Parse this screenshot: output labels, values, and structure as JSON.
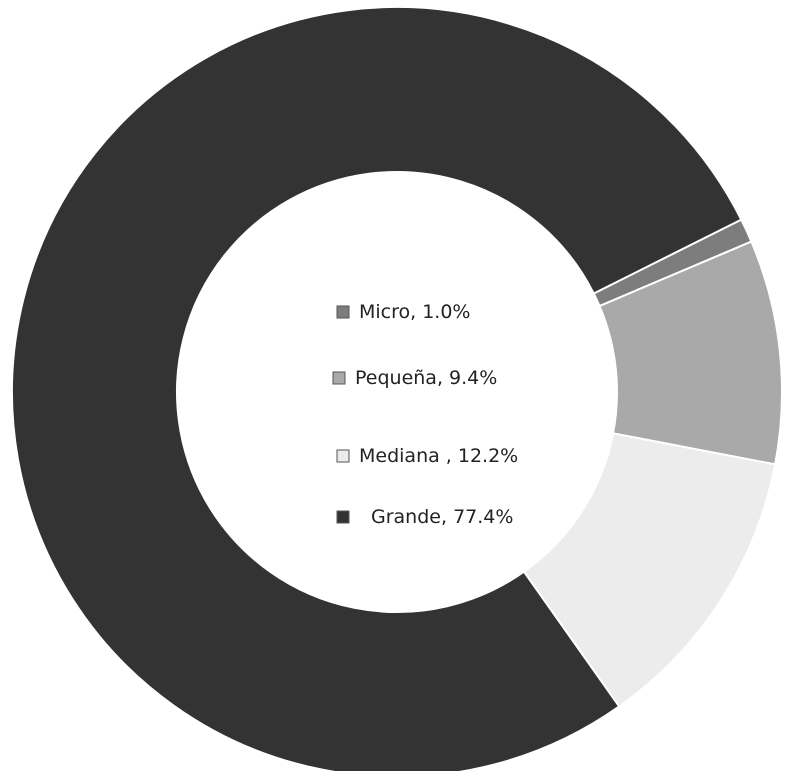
{
  "chart_data": {
    "type": "donut",
    "categories": [
      "Micro",
      "Pequeña",
      "Mediana",
      "Grande"
    ],
    "values": [
      1.0,
      9.4,
      12.2,
      77.4
    ],
    "value_labels": [
      ", 1.0%",
      ", 9.4%",
      " , 12.2%",
      ", 77.4%"
    ],
    "colors": [
      "#7d7d7d",
      "#a9a9a9",
      "#ececec",
      "#333333"
    ]
  }
}
